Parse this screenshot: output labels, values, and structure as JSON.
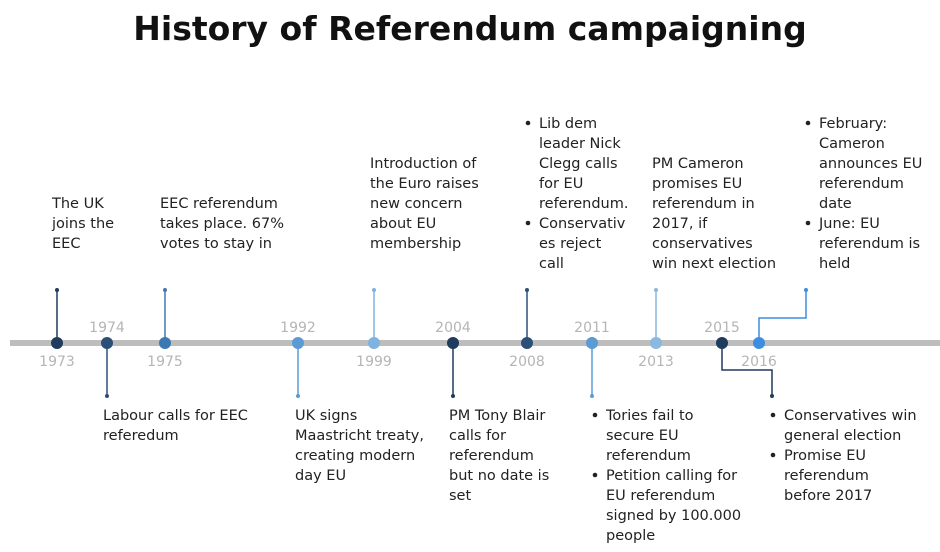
{
  "title": "History of Referendum campaigning",
  "items": [
    {
      "year": "1973",
      "lines": [
        "The UK",
        "joins the",
        "EEC"
      ]
    },
    {
      "year": "1974",
      "lines": [
        "Labour calls for EEC",
        "referedum"
      ]
    },
    {
      "year": "1975",
      "lines": [
        "EEC referendum",
        "takes place. 67%",
        "votes to stay in"
      ]
    },
    {
      "year": "1992",
      "lines": [
        "UK signs",
        "Maastricht treaty,",
        "creating modern",
        "day EU"
      ]
    },
    {
      "year": "1999",
      "lines": [
        "Introduction of",
        "the Euro raises",
        "new concern",
        "about EU",
        "membership"
      ]
    },
    {
      "year": "2004",
      "lines": [
        "PM Tony Blair",
        "calls for",
        "referendum",
        "but no date is",
        "set"
      ]
    },
    {
      "year": "2008",
      "bullets": [
        [
          "Lib dem",
          "leader Nick",
          "Clegg calls",
          "for EU",
          "referendum."
        ],
        [
          "Conservativ",
          "es reject",
          "call"
        ]
      ]
    },
    {
      "year": "2011",
      "bullets": [
        [
          "Tories fail to",
          "secure EU",
          "referendum"
        ],
        [
          "Petition calling for",
          "EU referendum",
          "signed by 100.000",
          "people"
        ]
      ]
    },
    {
      "year": "2013",
      "lines": [
        "PM Cameron",
        "promises EU",
        "referendum in",
        "2017, if",
        "conservatives",
        "win next election"
      ]
    },
    {
      "year": "2015",
      "bullets": [
        [
          "Conservatives win",
          "general election"
        ],
        [
          "Promise EU",
          "referendum",
          "before 2017"
        ]
      ]
    },
    {
      "year": "2016",
      "bullets": [
        [
          "February:",
          "Cameron",
          "announces  EU",
          "referendum",
          "date"
        ],
        [
          "June: EU",
          "referendum is",
          "held"
        ]
      ]
    }
  ]
}
